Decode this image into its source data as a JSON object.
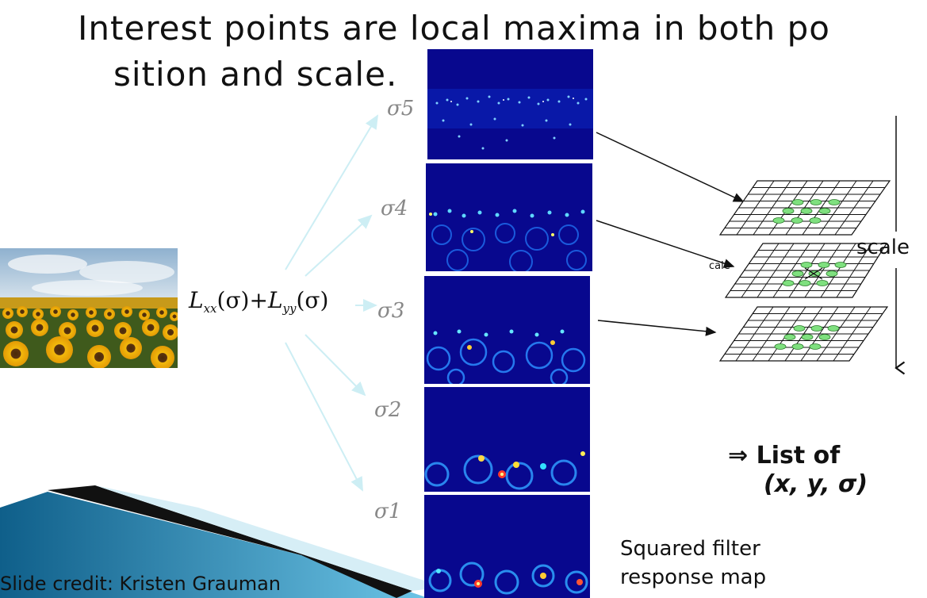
{
  "title": {
    "line1": "Interest points are local maxima in both po",
    "line2": "sition and scale."
  },
  "formula": {
    "L1": "L",
    "sub1": "xx",
    "arg1": "(σ)",
    "plus": "+",
    "L2": "L",
    "sub2": "yy",
    "arg2": "(σ)"
  },
  "scales": [
    {
      "label": "σ5"
    },
    {
      "label": "σ4"
    },
    {
      "label": "σ3"
    },
    {
      "label": "σ2"
    },
    {
      "label": "σ1"
    }
  ],
  "stack": {
    "scale_label": "scale",
    "small_label": "cale"
  },
  "result": {
    "arrow": "⇒",
    "list_of": "List of",
    "tuple": "(x, y, σ)"
  },
  "caption": {
    "line1": "Squared filter",
    "line2": "response map"
  },
  "credit": "Slide credit: Kristen Grauman",
  "colors": {
    "response_bg": "#08088e",
    "arrow_light": "#cdeef4",
    "green_blob": "#7fe07f",
    "banner_blue": "#1c7fb0"
  }
}
